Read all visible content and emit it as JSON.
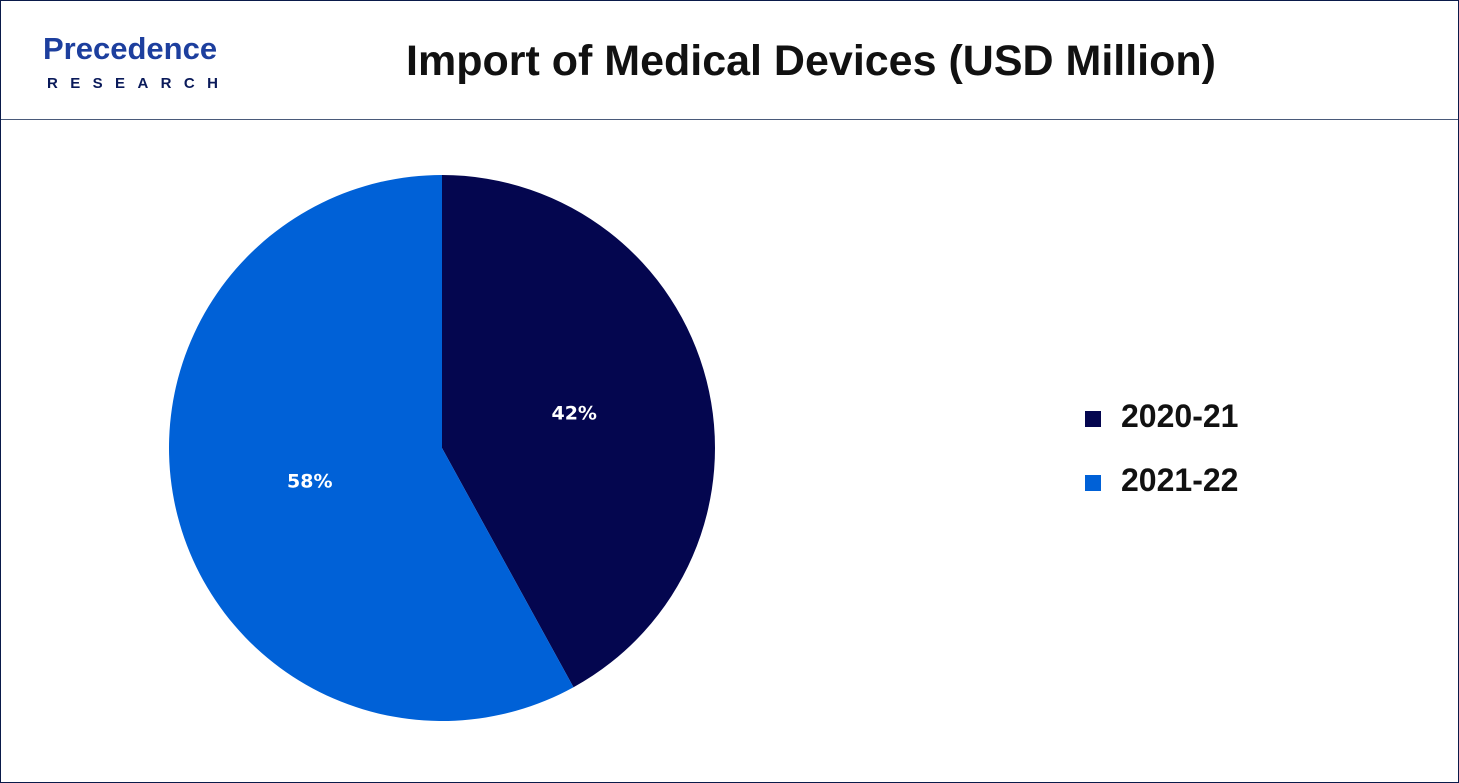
{
  "logo": {
    "top_text": "Precedence",
    "bottom_text": "RESEARCH"
  },
  "chart_data": {
    "type": "pie",
    "title": "Import of Medical Devices (USD Million)",
    "categories": [
      "2020-21",
      "2021-22"
    ],
    "values": [
      42,
      58
    ],
    "labels": [
      "42%",
      "58%"
    ],
    "colors": [
      "#04064f",
      "#0061d7"
    ],
    "legend_position": "right"
  }
}
